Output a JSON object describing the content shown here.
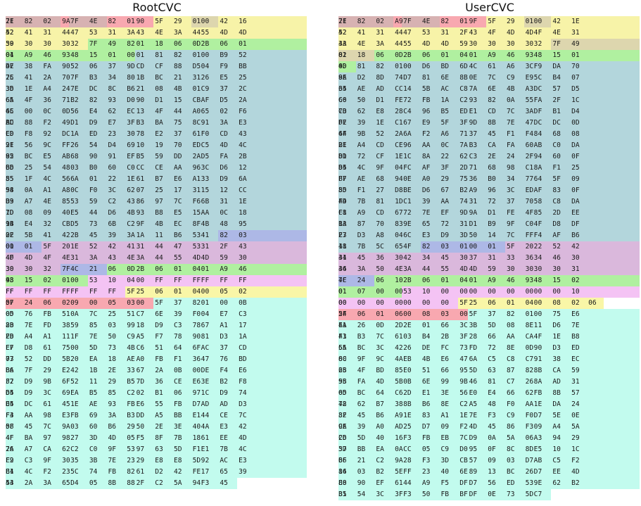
{
  "colors": {
    "tag": "#d7b2b2",
    "length": "#f8a8b0",
    "car": "#f7f3a8",
    "chr": "#ddd6ae",
    "green": "#b0f0a0",
    "blue": "#b3d6dc",
    "purple": "#dab8dc",
    "lavender": "#adb8e6",
    "pink": "#f4c3f4",
    "yellow": "#f9f6a7",
    "cyan": "#c2fbee"
  },
  "panels": [
    {
      "title": "RootCVC",
      "rows": [
        "7F 21 82 02 9A 7F 4E 82 01 90 5F 29 01 00 42 16",
        "52 42 41 31 44 47 53 31 3A 43 4E 3A 44 55 4D 4D",
        "59 30 30 30 30 32 7F 49 82 01 18 06 0D 2B 06 01",
        "04 01 A9 46 93 48 15 01 00 01 81 82 01 00 B9 52",
        "4E D7 38 FA 90 52 06 37 9D CD CF 88 D5 04 F9 BB",
        "7C 25 41 2A 70 7F B3 34 80 1B BC 21 31 26 E5 25",
        "36 3D 1E A4 24 7E DC 8C B6 21 08 4B 01 C9 37 2C",
        "6A 65 4F 36 71 B2 82 93 D0 90 D1 15 CB AF D5 2A",
        "4C 65 00 0C 0D 56 E4 62 EC 13 4F 44 A0 65 02 F6",
        "BD AC 88 F2 49 D1 D9 E7 3F B3 BA 75 8C 91 3A E3",
        "CD E0 F8 92 DC 1A ED 23 30 78 E2 37 61 F0 CD 43",
        "2F 91 56 9C FF 26 54 D4 69 10 19 70 ED C5 4D 4C",
        "95 82 BC E5 AB 68 90 91 EF B5 59 DD 2A D5 FA 2B",
        "BD 66 25 54 48 03 B0 60 C0 CC CE AA 96 3C D6 12",
        "85 55 1F 4C 56 6A 01 22 1E 61 B7 E6 A1 33 D9 6A",
        "98 54 0A A1 A8 0C F0 3C 62 07 25 17 31 15 12 CC",
        "B9 D3 A7 4E 85 53 59 C2 43 86 97 7C F6 6B 31 1E",
        "7D 1D 08 09 40 E5 44 D6 4B 93 B8 E5 15 AA 0C 18",
        "9B 14 E4 32 CB D5 73 6B C2 9F 4B EC 8F 4B 48 95",
        "02 2E 5B 41 42 2B 45 39 3A 1A 11 B6 53 41 82 03",
        "01 00 01 5F 20 1E 52 42 41 31 44 47 53 31 2F 43",
        "4F 4D 4D 4F 4E 31 3A 43 4E 3A 44 55 4D 4D 59 30",
        "30 30 30 32 7F 4C 21 06 0D 2B 06 01 04 01 A9 46",
        "93 48 15 02 01 00 53 10 04 00 FF FF FF FF FF FF",
        "FF FF FF FF FF FF FF FF 5F 25 06 01 04 00 05 02",
        "07 5F 24 06 02 09 00 05 03 00 5F 37 82 01 00 0B",
        "0D 05 76 FB 51 0A 7C 25 51 C7 6E 39 F0 04 E7 C3",
        "2B 80 7E FD 38 59 85 03 99 18 D9 C3 78 67 A1 17",
        "28 ED A4 A1 11 1F 7E 50 C9 A5 F7 78 90 81 D3 1A",
        "EF E7 D8 61 75 00 5D 73 4B C6 51 64 6F AC 37 CD",
        "07 73 52 DD 5B 20 EA 18 AE A0 FB F1 36 47 76 BD",
        "B6 BA 7F 29 E2 42 1B 2E 33 67 2A 0B 00 DE F4 E6",
        "F2 37 D9 9B 6F 52 11 29 B5 7D 36 CE E6 3E B2 F8",
        "65 D4 D9 3C 69 EA B5 85 C2 02 B1 06 97 1C D9 74",
        "E5 D4 DC 61 45 1E AE 93 FB E6 55 FB D7 AD AD D3",
        "F4 F3 AA 98 E3 FB 69 3A B3 DD A5 BB E1 44 CE 7C",
        "08 5F 45 7C 9A 03 60 B6 29 50 2E 3E 40 4A E3 42",
        "4F 4F BA 97 98 27 3D 4D 05 F5 8F 7B 18 61 EE 4D",
        "26 7A A7 CA 62 C2 C0 9F 53 97 63 5D F1 E1 7B 4C",
        "F2 E9 C3 9F 30 35 3B 7E 23 29 E8 E8 5D 92 AC E3",
        "E1 B4 4C F2 23 5C 74 FB 82 61 D2 42 FE 17 65 39",
        "44 53 2A 3A 65 D4 05 8B 88 2F C2 5A 94 F3 45"
      ]
    },
    {
      "title": "UserCVC",
      "rows": [
        "7F 21 82 02 A9 7F 4E 82 01 9F 5F 29 01 00 42 1E",
        "52 42 41 31 44 47 53 31 2F 43 4F 4D 4D 4F 4E 31",
        "3A 43 4E 3A 44 55 4D 4D 59 30 30 30 30 32 7F 49",
        "82 01 18 06 0D 2B 06 01 04 01 A9 46 93 48 15 01",
        "0D 40 81 82 01 00 D6 BD 6D 4C 61 A6 3C F9 DA 70",
        "8A 9E D2 8D 74 D7 81 6E 8B 0E 7C C9 E9 5C B4 07",
        "65 34 AE AD CC 14 5B AC C8 7A 6E 4B A3 DC 57 D5",
        "C0 66 50 D1 FE 72 FB 1A C2 93 82 0A 55 FA 2F 1C",
        "CB 7D 62 E8 28 C4 96 B5 ED E1 CD 7C 3A DF B1 D4",
        "F7 DE 39 1E C1 67 E9 5F 3F 9D 8B 7E 47 DC DC 0D",
        "4F 64 9B 52 2A 6A F2 A6 71 37 45 F1 F4 84 68 08",
        "21 BE A4 CD CE 96 AA 0C 7A B3 CA FA 60 AB C0 DA",
        "DD 81 72 CF 1E 1C 8A 22 62 C3 2E 24 2F 94 60 0F",
        "85 D4 4C 9F 04 FC AF 3F 2D 71 68 98 C1 8A F1 25",
        "B7 FF AE 68 94 0E A0 29 75 36 B0 34 77 64 5F 09",
        "5D 85 F1 27 D8 BE D6 67 B2 A9 96 3C ED AF 83 0F",
        "44 FD 7B 81 1D C1 39 AA 74 31 72 37 70 58 C8 DA",
        "C1 F8 A9 CD 67 72 7E EF 9D 9A D1 FE 4F 85 2D EE",
        "13 BA 87 70 83 9E 65 72 31 D1 B9 9F C0 4F D8 DF",
        "23 E7 D3 A8 04 6C E3 D9 3D 50 14 7C FF F4 AF B6",
        "41 18 7B 5C 65 4F 82 03 01 00 01 5F 20 22 52 42",
        "41 34 45 36 30 42 34 45 30 37 31 33 36 34 46 30",
        "34 46 3A 50 4E 3A 44 55 4D 4D 59 30 30 30 30 31",
        "7F 4C 24 06 10 2B 06 01 04 01 A9 46 93 48 15 02",
        "01 01 07 00 00 53 10 00 00 00 00 00 00 00 00 10",
        "00 00 00 00 00 00 00 00 5F 25 06 01 04 00 08 02 06",
        "5F 24 06 01 06 00 08 03 00 5F 37 82 01 00 75 E6",
        "EA 41 26 0D 2D 2E 01 66 3C 3B 5D 08 8E 11 D6 7E",
        "41 F3 B3 7C 61 03 B4 2B 3F 28 66 AA CA 4F 1E B8",
        "55 6A BC 3C 42 26 DE FC 73 FD 72 8E 0D 90 D3 ED",
        "60 8C 9F 9C 4A EB 4B E6 47 6A C5 C8 C7 91 38 EC",
        "25 6B 4F BD 85 E0 51 66 95 5D 63 87 82 8B CA 59",
        "9B 55 FA 4D 5B 0B 6E 99 9B 46 81 C7 26 8A AD 31",
        "0D 65 BC 64 C6 2D E1 3E 56 E0 E4 66 62 FB 8B 57",
        "42 78 62 B7 38 8B B6 8E C2 A5 48 F0 AA 1E DA 24",
        "3F 82 45 B6 A9 1E 83 A1 1E 7E F3 C9 F0 D7 5E 0E",
        "CE 9A 39 A0 AD 25 D7 09 F2 4D 45 86 F3 09 A4 5A",
        "26 CD 5D 40 16 F3 FB EB 7C D9 0A 5A 06 A3 94 29",
        "57 3D BB EA 0A CC 05 C9 D0 95 0F 8C 8D E5 10 1C",
        "66 BF 21 C2 9A 28 F3 3D CB 57 09 03 D7 AB C5 F2",
        "86 14 03 B2 5E FF 23 40 6E 89 13 BC 26 D7 EE 4D",
        "E0 88 90 EF 61 44 A9 F5 DF D7 56 ED 53 9E 62 B2",
        "B1 35 54 3C 3F F3 50 FB BF DF 0E 73 5D C7"
      ]
    }
  ]
}
